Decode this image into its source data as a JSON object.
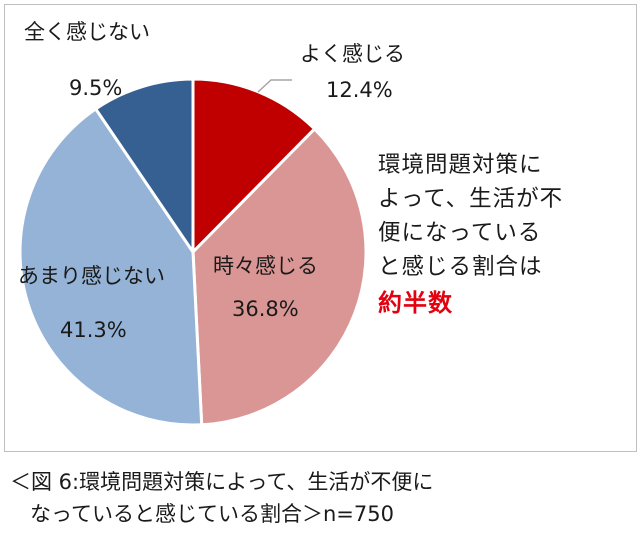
{
  "chart_data": {
    "type": "pie",
    "categories": [
      "よく感じる",
      "時々感じる",
      "あまり感じない",
      "全く感じない"
    ],
    "values": [
      12.4,
      36.8,
      41.3,
      9.5
    ],
    "value_labels": [
      "12.4%",
      "36.8%",
      "41.3%",
      "9.5%"
    ],
    "colors": [
      "#c00000",
      "#d99694",
      "#95b3d7",
      "#376092"
    ],
    "start": "12 o'clock",
    "direction": "clockwise"
  },
  "callout": {
    "lines": [
      "環境問題対策に",
      "よって、生活が不",
      "便になっている",
      "と感じる割合は"
    ],
    "emphasis": "約半数",
    "emphasis_color": "#e3000f"
  },
  "caption": {
    "line1": "＜図 6:環境問題対策によって、生活が不便に",
    "line2": "なっていると感じている割合＞n=750"
  }
}
